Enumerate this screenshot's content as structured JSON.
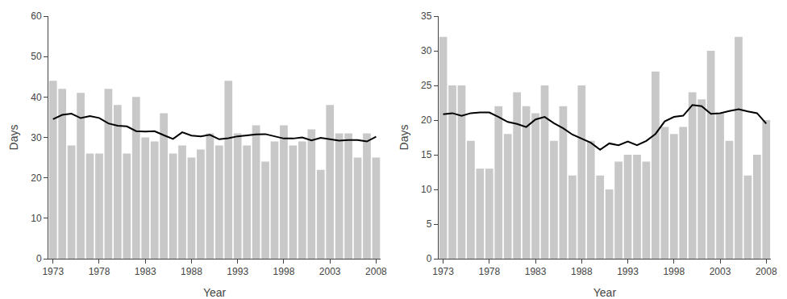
{
  "chart_data": [
    {
      "type": "bar",
      "xlabel": "Year",
      "ylabel": "Days",
      "x": [
        1973,
        1974,
        1975,
        1976,
        1977,
        1978,
        1979,
        1980,
        1981,
        1982,
        1983,
        1984,
        1985,
        1986,
        1987,
        1988,
        1989,
        1990,
        1991,
        1992,
        1993,
        1994,
        1995,
        1996,
        1997,
        1998,
        1999,
        2000,
        2001,
        2002,
        2003,
        2004,
        2005,
        2006,
        2007,
        2008
      ],
      "series": [
        {
          "type": "bar",
          "color": "#c8c8c8",
          "values": [
            44,
            42,
            28,
            41,
            26,
            26,
            42,
            38,
            26,
            40,
            30,
            29,
            36,
            26,
            28,
            25,
            27,
            31,
            28,
            44,
            31,
            28,
            33,
            24,
            29,
            33,
            28,
            29,
            32,
            22,
            38,
            31,
            31,
            25,
            31,
            25
          ]
        },
        {
          "type": "line",
          "color": "#000000",
          "values": [
            34.5,
            35.5714285714,
            35.875,
            34.7777777778,
            35.3,
            34.8181818182,
            33.4545454545,
            32.9090909091,
            32.7272727273,
            31.5454545455,
            31.4545454545,
            31.5454545455,
            30.5454545455,
            29.6363636364,
            31.2727272727,
            30.4545454545,
            30.2727272727,
            30.6363636364,
            29.5454545455,
            29.8181818182,
            30.2727272727,
            30.5454545455,
            30.7272727273,
            30.8181818182,
            30.2727272727,
            29.7272727273,
            29.7272727273,
            30,
            29.2727272727,
            29.9090909091,
            29.5454545455,
            29.2,
            29.3333333333,
            29.375,
            29,
            30.1666666667
          ]
        }
      ],
      "xlim": [
        1972.5,
        2008.5
      ],
      "xticks": [
        1973,
        1978,
        1983,
        1988,
        1993,
        1998,
        2003,
        2008
      ],
      "ylim": [
        0,
        60
      ],
      "yticks": [
        0,
        10,
        20,
        30,
        40,
        50,
        60
      ],
      "grid": false
    },
    {
      "type": "bar",
      "xlabel": "Year",
      "ylabel": "Days",
      "x": [
        1973,
        1974,
        1975,
        1976,
        1977,
        1978,
        1979,
        1980,
        1981,
        1982,
        1983,
        1984,
        1985,
        1986,
        1987,
        1988,
        1989,
        1990,
        1991,
        1992,
        1993,
        1994,
        1995,
        1996,
        1997,
        1998,
        1999,
        2000,
        2001,
        2002,
        2003,
        2004,
        2005,
        2006,
        2007,
        2008
      ],
      "series": [
        {
          "type": "bar",
          "color": "#c8c8c8",
          "values": [
            32,
            25,
            25,
            17,
            13,
            13,
            22,
            18,
            24,
            22,
            21,
            25,
            17,
            22,
            12,
            25,
            17,
            12,
            10,
            14,
            15,
            15,
            14,
            27,
            19,
            18,
            19,
            24,
            23,
            30,
            21,
            17,
            32,
            12,
            15,
            20
          ]
        },
        {
          "type": "line",
          "color": "#000000",
          "values": [
            20.8333333333,
            21,
            20.625,
            21,
            21.1,
            21.0909090909,
            20.4545454545,
            19.7272727273,
            19.4545454545,
            19,
            20.0909090909,
            20.4545454545,
            19.5454545455,
            18.8181818182,
            17.9090909091,
            17.2727272727,
            16.7272727273,
            15.7272727273,
            16.6363636364,
            16.3636363636,
            16.9090909091,
            16.3636363636,
            17,
            18,
            19.8181818182,
            20.4545454545,
            20.6363636364,
            22.1818181818,
            22,
            20.9090909091,
            21,
            21.3,
            21.5555555556,
            21.25,
            21,
            19.5
          ]
        }
      ],
      "xlim": [
        1972.5,
        2008.5
      ],
      "xticks": [
        1973,
        1978,
        1983,
        1988,
        1993,
        1998,
        2003,
        2008
      ],
      "ylim": [
        0,
        35
      ],
      "yticks": [
        0,
        5,
        10,
        15,
        20,
        25,
        30,
        35
      ],
      "grid": false
    }
  ]
}
